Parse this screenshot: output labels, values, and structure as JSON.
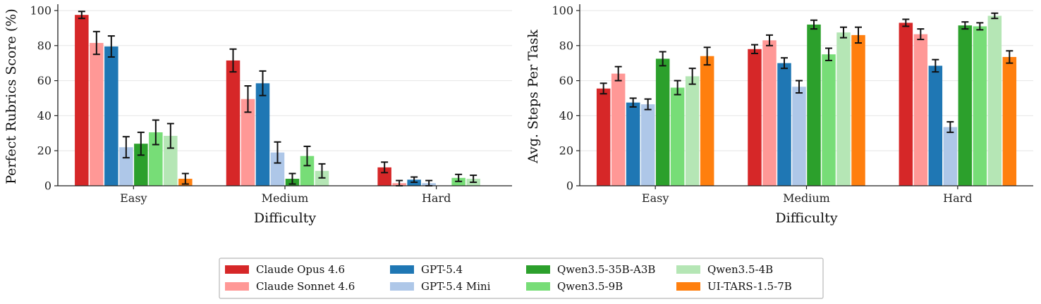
{
  "chart_data": [
    {
      "type": "bar",
      "title": "",
      "xlabel": "Difficulty",
      "ylabel": "Perfect Rubrics Score (%)",
      "categories": [
        "Easy",
        "Medium",
        "Hard"
      ],
      "ylim": [
        0,
        102
      ],
      "yticks": [
        0,
        20,
        40,
        60,
        80,
        100
      ],
      "grid": "horizontal",
      "series": [
        {
          "name": "Claude Opus 4.6",
          "values": [
            97.5,
            71.5,
            10.5
          ],
          "errors": [
            2.0,
            6.5,
            3.0
          ]
        },
        {
          "name": "Claude Sonnet 4.6",
          "values": [
            81.5,
            49.5,
            1.5
          ],
          "errors": [
            6.5,
            7.5,
            1.5
          ]
        },
        {
          "name": "GPT-5.4",
          "values": [
            79.5,
            58.5,
            3.5
          ],
          "errors": [
            6.0,
            7.0,
            1.5
          ]
        },
        {
          "name": "GPT-5.4 Mini",
          "values": [
            22.0,
            19.0,
            1.5
          ],
          "errors": [
            6.0,
            6.0,
            1.5
          ]
        },
        {
          "name": "Qwen3.5-35B-A3B",
          "values": [
            24.0,
            4.0,
            0.0
          ],
          "errors": [
            6.5,
            3.0,
            0.0
          ]
        },
        {
          "name": "Qwen3.5-9B",
          "values": [
            30.5,
            17.0,
            4.5
          ],
          "errors": [
            7.0,
            5.5,
            2.0
          ]
        },
        {
          "name": "Qwen3.5-4B",
          "values": [
            28.5,
            8.5,
            4.0
          ],
          "errors": [
            7.0,
            4.0,
            2.0
          ]
        },
        {
          "name": "UI-TARS-1.5-7B",
          "values": [
            4.0,
            0.0,
            0.0
          ],
          "errors": [
            3.0,
            0.0,
            0.0
          ]
        }
      ]
    },
    {
      "type": "bar",
      "title": "",
      "xlabel": "Difficulty",
      "ylabel": "Avg. Steps Per Task",
      "categories": [
        "Easy",
        "Medium",
        "Hard"
      ],
      "ylim": [
        0,
        102
      ],
      "yticks": [
        0,
        20,
        40,
        60,
        80,
        100
      ],
      "grid": "horizontal",
      "series": [
        {
          "name": "Claude Opus 4.6",
          "values": [
            55.5,
            78.0,
            93.0
          ],
          "errors": [
            3.0,
            2.5,
            2.0
          ]
        },
        {
          "name": "Claude Sonnet 4.6",
          "values": [
            64.0,
            83.0,
            86.5
          ],
          "errors": [
            4.0,
            3.0,
            3.0
          ]
        },
        {
          "name": "GPT-5.4",
          "values": [
            47.5,
            70.0,
            68.5
          ],
          "errors": [
            2.5,
            3.0,
            3.5
          ]
        },
        {
          "name": "GPT-5.4 Mini",
          "values": [
            46.5,
            56.5,
            33.5
          ],
          "errors": [
            3.0,
            3.5,
            3.0
          ]
        },
        {
          "name": "Qwen3.5-35B-A3B",
          "values": [
            72.5,
            92.0,
            91.5
          ],
          "errors": [
            4.0,
            2.5,
            2.0
          ]
        },
        {
          "name": "Qwen3.5-9B",
          "values": [
            56.0,
            75.0,
            91.0
          ],
          "errors": [
            4.0,
            3.5,
            2.0
          ]
        },
        {
          "name": "Qwen3.5-4B",
          "values": [
            62.5,
            87.5,
            97.0
          ],
          "errors": [
            4.5,
            3.0,
            1.5
          ]
        },
        {
          "name": "UI-TARS-1.5-7B",
          "values": [
            74.0,
            86.0,
            73.5
          ],
          "errors": [
            5.0,
            4.5,
            3.5
          ]
        }
      ]
    }
  ],
  "colors": [
    "#d62728",
    "#ff9896",
    "#1f77b4",
    "#aec7e8",
    "#2ca02c",
    "#77dd77",
    "#b5e6b5",
    "#ff7f0e"
  ],
  "legend": {
    "placement": "bottom-center",
    "columns": 4,
    "items": [
      "Claude Opus 4.6",
      "Claude Sonnet 4.6",
      "GPT-5.4",
      "GPT-5.4 Mini",
      "Qwen3.5-35B-A3B",
      "Qwen3.5-9B",
      "Qwen3.5-4B",
      "UI-TARS-1.5-7B"
    ]
  }
}
